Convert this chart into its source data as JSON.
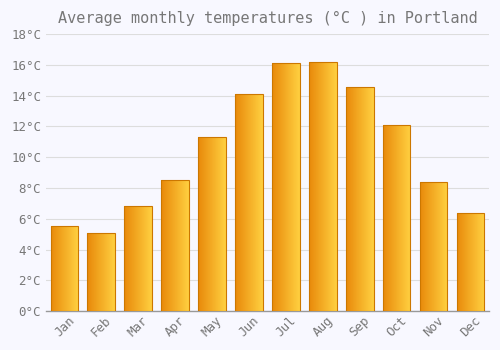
{
  "title": "Average monthly temperatures (°C ) in Portland",
  "months": [
    "Jan",
    "Feb",
    "Mar",
    "Apr",
    "May",
    "Jun",
    "Jul",
    "Aug",
    "Sep",
    "Oct",
    "Nov",
    "Dec"
  ],
  "values": [
    5.5,
    5.1,
    6.8,
    8.5,
    11.3,
    14.1,
    16.1,
    16.2,
    14.6,
    12.1,
    8.4,
    6.4
  ],
  "bar_color_left": "#E8890A",
  "bar_color_right": "#FFD040",
  "bar_edge_color": "#CC7700",
  "background_color": "#F8F8FF",
  "grid_color": "#DDDDDD",
  "text_color": "#777777",
  "ylim": [
    0,
    18
  ],
  "yticks": [
    0,
    2,
    4,
    6,
    8,
    10,
    12,
    14,
    16,
    18
  ],
  "ytick_labels": [
    "0°C",
    "2°C",
    "4°C",
    "6°C",
    "8°C",
    "10°C",
    "12°C",
    "14°C",
    "16°C",
    "18°C"
  ],
  "title_fontsize": 11,
  "tick_fontsize": 9,
  "bar_width": 0.75
}
